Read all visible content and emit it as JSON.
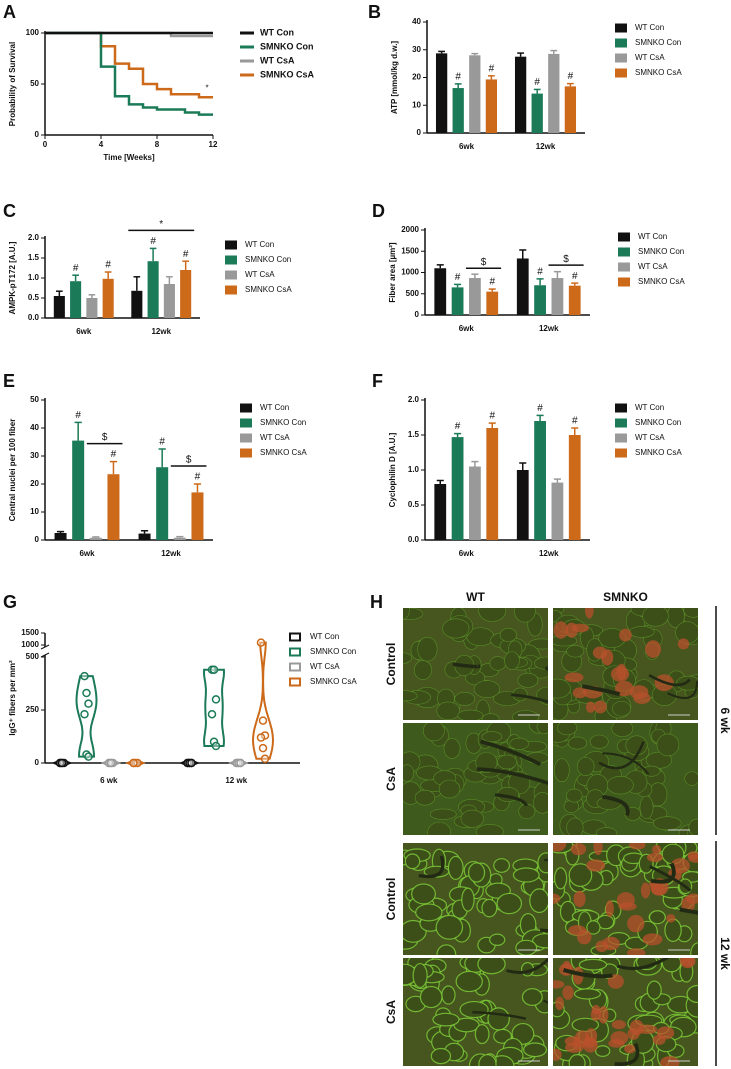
{
  "chart_data": [
    {
      "type": "line",
      "panel_label": "A",
      "xlabel": "Time [Weeks]",
      "ylabel": "Probability of Survival",
      "xlim": [
        0,
        12
      ],
      "xticks": [
        0,
        4,
        8,
        12
      ],
      "ylim": [
        0,
        100
      ],
      "yticks": [
        0,
        50,
        100
      ],
      "annotation": "*",
      "series": [
        {
          "name": "WT Con",
          "color": "#111111",
          "x": [
            0,
            12
          ],
          "values": [
            100,
            100
          ]
        },
        {
          "name": "SMNKO Con",
          "color": "#1b7a57",
          "x": [
            0,
            4,
            4,
            5,
            5,
            6,
            6,
            7,
            7,
            8,
            8,
            10,
            10,
            11,
            11,
            12
          ],
          "values": [
            100,
            100,
            67,
            67,
            38,
            38,
            30,
            30,
            27,
            27,
            25,
            25,
            22,
            22,
            20,
            20
          ]
        },
        {
          "name": "WT CsA",
          "color": "#999999",
          "x": [
            0,
            9,
            9,
            12
          ],
          "values": [
            100,
            100,
            97,
            97
          ]
        },
        {
          "name": "SMNKO CsA",
          "color": "#cc6a1a",
          "x": [
            0,
            4,
            4,
            5,
            5,
            6,
            6,
            7,
            7,
            8,
            8,
            9,
            9,
            11,
            11,
            12
          ],
          "values": [
            100,
            100,
            87,
            87,
            70,
            70,
            65,
            65,
            50,
            50,
            45,
            45,
            40,
            40,
            37,
            37
          ]
        }
      ]
    },
    {
      "type": "bar",
      "panel_label": "B",
      "ylabel": "ATP [mmol/kg d.w.]",
      "categories": [
        "6wk",
        "12wk"
      ],
      "ylim": [
        0,
        40
      ],
      "yticks": [
        0,
        10,
        20,
        30,
        40
      ],
      "series": [
        {
          "name": "WT Con",
          "color": "#111111",
          "values": [
            28.7,
            27.5
          ],
          "errors": [
            0.7,
            1.3
          ],
          "significance": [
            null,
            null
          ]
        },
        {
          "name": "SMNKO Con",
          "color": "#1b7a57",
          "values": [
            16.2,
            14.2
          ],
          "errors": [
            1.5,
            1.5
          ],
          "significance": [
            "#",
            "#"
          ]
        },
        {
          "name": "WT CsA",
          "color": "#999999",
          "values": [
            28.0,
            28.5
          ],
          "errors": [
            0.6,
            1.2
          ],
          "significance": [
            null,
            null
          ]
        },
        {
          "name": "SMNKO CsA",
          "color": "#cc6a1a",
          "values": [
            19.3,
            16.8
          ],
          "errors": [
            1.3,
            1.0
          ],
          "significance": [
            "#",
            "#"
          ]
        }
      ]
    },
    {
      "type": "bar",
      "panel_label": "C",
      "ylabel": "AMPK-pT172 [A.U.]",
      "categories": [
        "6wk",
        "12wk"
      ],
      "ylim": [
        0,
        2
      ],
      "yticks": [
        {
          "value": 0,
          "label": "0.0"
        },
        0.5,
        {
          "value": 1,
          "label": "1.0"
        },
        1.5,
        {
          "value": 2,
          "label": "2.0"
        }
      ],
      "bracket_labels": [
        "*"
      ],
      "series": [
        {
          "name": "WT Con",
          "color": "#111111",
          "values": [
            0.55,
            0.68
          ],
          "errors": [
            0.12,
            0.35
          ],
          "significance": [
            null,
            null
          ]
        },
        {
          "name": "SMNKO Con",
          "color": "#1b7a57",
          "values": [
            0.92,
            1.42
          ],
          "errors": [
            0.15,
            0.32
          ],
          "significance": [
            "#",
            "#"
          ]
        },
        {
          "name": "WT CsA",
          "color": "#999999",
          "values": [
            0.5,
            0.85
          ],
          "errors": [
            0.08,
            0.18
          ],
          "significance": [
            null,
            null
          ]
        },
        {
          "name": "SMNKO CsA",
          "color": "#cc6a1a",
          "values": [
            0.98,
            1.2
          ],
          "errors": [
            0.17,
            0.22
          ],
          "significance": [
            "#",
            "#"
          ]
        }
      ]
    },
    {
      "type": "bar",
      "panel_label": "D",
      "ylabel": "Fiber area [µm²]",
      "categories": [
        "6wk",
        "12wk"
      ],
      "ylim": [
        0,
        2000
      ],
      "yticks": [
        0,
        500,
        1000,
        1500,
        2000
      ],
      "bracket_labels": [
        "$",
        "$"
      ],
      "series": [
        {
          "name": "WT Con",
          "color": "#111111",
          "values": [
            1100,
            1330
          ],
          "errors": [
            80,
            200
          ],
          "significance": [
            null,
            null
          ]
        },
        {
          "name": "SMNKO Con",
          "color": "#1b7a57",
          "values": [
            650,
            700
          ],
          "errors": [
            70,
            150
          ],
          "significance": [
            "#",
            "#"
          ]
        },
        {
          "name": "WT CsA",
          "color": "#999999",
          "values": [
            870,
            870
          ],
          "errors": [
            90,
            150
          ],
          "significance": [
            null,
            null
          ]
        },
        {
          "name": "SMNKO CsA",
          "color": "#cc6a1a",
          "values": [
            550,
            690
          ],
          "errors": [
            60,
            60
          ],
          "significance": [
            "#",
            "#"
          ]
        }
      ]
    },
    {
      "type": "bar",
      "panel_label": "E",
      "ylabel": "Central nuclei per 100 fiber",
      "categories": [
        "6wk",
        "12wk"
      ],
      "ylim": [
        0,
        50
      ],
      "yticks": [
        0,
        10,
        20,
        30,
        40,
        50
      ],
      "bracket_labels": [
        "$",
        "$"
      ],
      "series": [
        {
          "name": "WT Con",
          "color": "#111111",
          "values": [
            2.5,
            2.3
          ],
          "errors": [
            0.5,
            1.0
          ],
          "significance": [
            null,
            null
          ]
        },
        {
          "name": "SMNKO Con",
          "color": "#1b7a57",
          "values": [
            35.5,
            26
          ],
          "errors": [
            6.5,
            6.5
          ],
          "significance": [
            "#",
            "#"
          ]
        },
        {
          "name": "WT CsA",
          "color": "#999999",
          "values": [
            0.8,
            0.8
          ],
          "errors": [
            0.3,
            0.4
          ],
          "significance": [
            null,
            null
          ]
        },
        {
          "name": "SMNKO CsA",
          "color": "#cc6a1a",
          "values": [
            23.5,
            17
          ],
          "errors": [
            4.5,
            3
          ],
          "significance": [
            "#",
            "#"
          ]
        }
      ]
    },
    {
      "type": "bar",
      "panel_label": "F",
      "ylabel": "Cyclophilin D [A.U.]",
      "categories": [
        "6wk",
        "12wk"
      ],
      "ylim": [
        0,
        2
      ],
      "yticks": [
        {
          "value": 0,
          "label": "0.0"
        },
        0.5,
        {
          "value": 1,
          "label": "1.0"
        },
        1.5,
        {
          "value": 2,
          "label": "2.0"
        }
      ],
      "series": [
        {
          "name": "WT Con",
          "color": "#111111",
          "values": [
            0.8,
            1.0
          ],
          "errors": [
            0.05,
            0.1
          ],
          "significance": [
            null,
            null
          ]
        },
        {
          "name": "SMNKO Con",
          "color": "#1b7a57",
          "values": [
            1.47,
            1.7
          ],
          "errors": [
            0.05,
            0.08
          ],
          "significance": [
            "#",
            "#"
          ]
        },
        {
          "name": "WT CsA",
          "color": "#999999",
          "values": [
            1.05,
            0.82
          ],
          "errors": [
            0.07,
            0.05
          ],
          "significance": [
            null,
            null
          ]
        },
        {
          "name": "SMNKO CsA",
          "color": "#cc6a1a",
          "values": [
            1.6,
            1.5
          ],
          "errors": [
            0.07,
            0.1
          ],
          "significance": [
            "#",
            "#"
          ]
        }
      ]
    },
    {
      "type": "violin",
      "panel_label": "G",
      "ylabel": "IgG⁺ fibers per mm²",
      "categories": [
        "6 wk",
        "12 wk"
      ],
      "ylim": [
        0,
        1500
      ],
      "ybreak": [
        500,
        1000
      ],
      "yticks": [
        0,
        250,
        500,
        1000,
        1500
      ],
      "series": [
        {
          "name": "WT Con",
          "color": "#111111",
          "values": [
            [
              0,
              0,
              0,
              0,
              0
            ],
            [
              0,
              0,
              0,
              0,
              0,
              0
            ]
          ]
        },
        {
          "name": "SMNKO Con",
          "color": "#1b7a57",
          "values": [
            [
              410,
              330,
              280,
              230,
              40,
              30
            ],
            [
              440,
              440,
              300,
              230,
              100,
              80
            ]
          ]
        },
        {
          "name": "WT CsA",
          "color": "#999999",
          "values": [
            [
              0,
              0,
              0,
              0,
              0
            ],
            [
              0,
              0,
              0,
              0,
              0,
              0
            ]
          ]
        },
        {
          "name": "SMNKO CsA",
          "color": "#cc6a1a",
          "values": [
            [
              0,
              0,
              0,
              0
            ],
            [
              1100,
              200,
              130,
              120,
              70,
              20
            ]
          ]
        }
      ]
    }
  ],
  "image_panel": {
    "panel_label": "H",
    "columns": [
      "WT",
      "SMNKO"
    ],
    "rows": [
      "Control",
      "CsA",
      "Control",
      "CsA"
    ],
    "groups": [
      "6 wk",
      "12 wk"
    ]
  }
}
